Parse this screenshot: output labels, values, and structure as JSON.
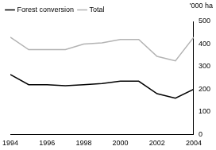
{
  "chart_data": {
    "type": "line",
    "ylabel": "'000 ha",
    "x": [
      1994,
      1995,
      1996,
      1997,
      1998,
      1999,
      2000,
      2001,
      2002,
      2003,
      2004
    ],
    "series": [
      {
        "name": "Forest conversion",
        "color": "#000000",
        "values": [
          265,
          220,
          220,
          215,
          220,
          225,
          235,
          235,
          180,
          160,
          200
        ]
      },
      {
        "name": "Total",
        "color": "#b3b3b3",
        "values": [
          430,
          375,
          375,
          375,
          400,
          405,
          420,
          420,
          345,
          325,
          430
        ]
      }
    ],
    "xlim": [
      1994,
      2004
    ],
    "xticks": [
      1994,
      1996,
      1998,
      2000,
      2002,
      2004
    ],
    "ylim": [
      0,
      500
    ],
    "yticks": [
      0,
      100,
      200,
      300,
      400,
      500
    ],
    "grid": false,
    "legend": "top-left"
  }
}
